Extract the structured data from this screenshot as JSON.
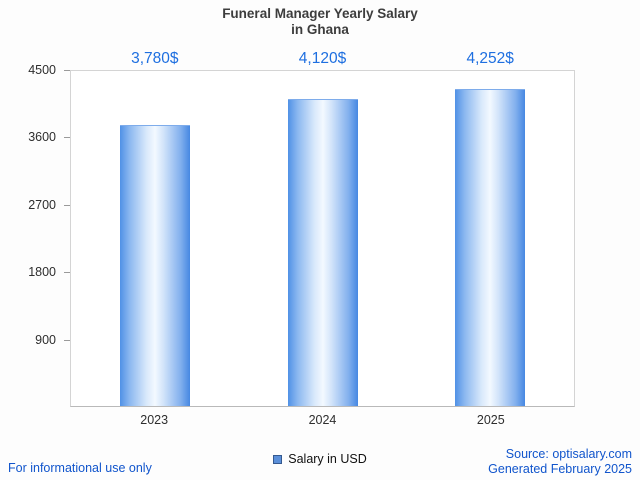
{
  "title": {
    "line1": "Funeral Manager Yearly Salary",
    "line2": "in Ghana"
  },
  "chart_data": {
    "type": "bar",
    "title": "Funeral Manager Yearly Salary in Ghana",
    "categories": [
      "2023",
      "2024",
      "2025"
    ],
    "values": [
      3780,
      4120,
      4252
    ],
    "value_labels": [
      "3,780$",
      "4,120$",
      "4,252$"
    ],
    "series_name": "Salary in USD",
    "xlabel": "",
    "ylabel": "",
    "ylim": [
      0,
      4500
    ],
    "yticks": [
      4500,
      3600,
      2700,
      1800,
      900
    ],
    "grid": false,
    "legend_position": "bottom",
    "bar_gradient_edge_color": "#4688e2",
    "bar_gradient_center_color": "#f3f9ff",
    "value_label_color": "#1e6fe0"
  },
  "legend": {
    "label": "Salary in USD",
    "swatch_color": "#5b8fd9"
  },
  "footer": {
    "left": "For informational use only",
    "source": "Source: optisalary.com",
    "generated": "Generated February 2025",
    "link_color": "#1155cc"
  }
}
